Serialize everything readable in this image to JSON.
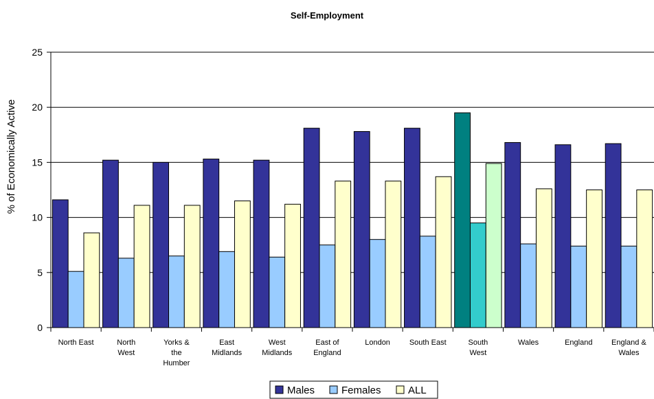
{
  "chart_data": {
    "type": "bar",
    "title": "Self-Employment",
    "ylabel": "% of Economically Active",
    "xlabel": "",
    "ylim": [
      0,
      25
    ],
    "yticks": [
      0,
      5,
      10,
      15,
      20,
      25
    ],
    "grid": true,
    "legend_position": "bottom",
    "categories": [
      [
        "North East"
      ],
      [
        "North",
        "West"
      ],
      [
        "Yorks &",
        "the",
        "Humber"
      ],
      [
        "East",
        "Midlands"
      ],
      [
        "West",
        "Midlands"
      ],
      [
        "East of",
        "England"
      ],
      [
        "London"
      ],
      [
        "South East"
      ],
      [
        "South",
        "West"
      ],
      [
        "Wales"
      ],
      [
        "England"
      ],
      [
        "England &",
        "Wales"
      ]
    ],
    "series": [
      {
        "name": "Males",
        "color": "#333399",
        "values": [
          11.6,
          15.2,
          15.0,
          15.3,
          15.2,
          18.1,
          17.8,
          18.1,
          19.5,
          16.8,
          16.6,
          16.7
        ]
      },
      {
        "name": "Females",
        "color": "#99CCFF",
        "values": [
          5.1,
          6.3,
          6.5,
          6.9,
          6.4,
          7.5,
          8.0,
          8.3,
          9.5,
          7.6,
          7.4,
          7.4
        ]
      },
      {
        "name": "ALL",
        "color": "#FFFFCC",
        "values": [
          8.6,
          11.1,
          11.1,
          11.5,
          11.2,
          13.3,
          13.3,
          13.7,
          14.9,
          12.6,
          12.5,
          12.5
        ]
      }
    ],
    "highlight": {
      "category_index": 8,
      "colors": [
        "#008080",
        "#33CCCC",
        "#CCFFCC"
      ]
    }
  }
}
